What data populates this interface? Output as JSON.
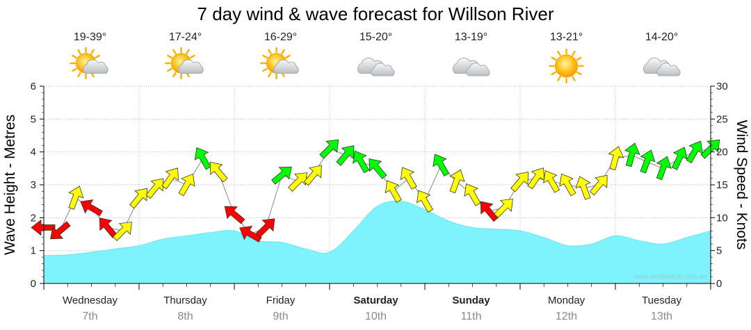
{
  "chart_data": {
    "type": "line",
    "title": "7 day wind & wave forecast for Willson River",
    "y_left": {
      "label": "Wave Height - Metres",
      "range": [
        0,
        6
      ],
      "ticks": [
        0,
        1,
        2,
        3,
        4,
        5,
        6
      ]
    },
    "y_right": {
      "label": "Wind Speed - Knots",
      "range": [
        0,
        30
      ],
      "ticks": [
        0,
        5,
        10,
        15,
        20,
        25,
        30
      ]
    },
    "grid": true,
    "days": [
      {
        "name": "Wednesday",
        "date": "7th",
        "temp": "19-39°",
        "icon": "sun-cloud-icon",
        "bold": false
      },
      {
        "name": "Thursday",
        "date": "8th",
        "temp": "17-24°",
        "icon": "sun-cloud-icon",
        "bold": false
      },
      {
        "name": "Friday",
        "date": "9th",
        "temp": "16-29°",
        "icon": "sun-cloud-icon",
        "bold": false
      },
      {
        "name": "Saturday",
        "date": "10th",
        "temp": "15-20°",
        "icon": "cloud-icon",
        "bold": true
      },
      {
        "name": "Sunday",
        "date": "11th",
        "temp": "13-19°",
        "icon": "cloud-icon",
        "bold": true
      },
      {
        "name": "Monday",
        "date": "12th",
        "temp": "13-21°",
        "icon": "sun-icon",
        "bold": false
      },
      {
        "name": "Tuesday",
        "date": "13th",
        "temp": "14-20°",
        "icon": "cloud-icon",
        "bold": false
      }
    ],
    "wave_series": {
      "name": "Wave Height",
      "color": "#7ff3fb",
      "x_days": [
        0,
        0.25,
        0.5,
        0.75,
        1.0,
        1.25,
        1.5,
        1.75,
        2.0,
        2.25,
        2.5,
        2.75,
        3.0,
        3.25,
        3.5,
        3.75,
        4.0,
        4.25,
        4.5,
        4.75,
        5.0,
        5.25,
        5.5,
        5.75,
        6.0,
        6.25,
        6.5,
        6.75,
        7.0
      ],
      "values": [
        0.85,
        0.87,
        0.95,
        1.05,
        1.15,
        1.35,
        1.45,
        1.55,
        1.6,
        1.3,
        1.25,
        1.05,
        0.95,
        1.6,
        2.35,
        2.5,
        2.25,
        1.9,
        1.7,
        1.65,
        1.6,
        1.4,
        1.15,
        1.2,
        1.45,
        1.3,
        1.2,
        1.4,
        1.6
      ]
    },
    "wind_series": {
      "name": "Wind Speed",
      "color_scale": {
        "low": "#ffff00",
        "mid": "#00ff00",
        "high": "#ff0000"
      },
      "x_days": [
        0,
        0.17,
        0.33,
        0.5,
        0.67,
        0.83,
        1.0,
        1.17,
        1.33,
        1.5,
        1.67,
        1.83,
        2.0,
        2.17,
        2.33,
        2.5,
        2.67,
        2.83,
        3.0,
        3.17,
        3.33,
        3.5,
        3.67,
        3.83,
        4.0,
        4.17,
        4.33,
        4.5,
        4.67,
        4.83,
        5.0,
        5.17,
        5.33,
        5.5,
        5.67,
        5.83,
        6.0,
        6.17,
        6.33,
        6.5,
        6.67,
        6.83,
        7.0
      ],
      "values": [
        8.5,
        8.0,
        13.0,
        11.5,
        8.5,
        8.0,
        13.0,
        14.5,
        16.0,
        15.0,
        19.0,
        17.0,
        10.5,
        7.5,
        8.5,
        16.5,
        15.5,
        16.5,
        20.5,
        19.5,
        18.5,
        17.5,
        14.0,
        16.0,
        12.5,
        18.0,
        15.5,
        13.5,
        11.0,
        11.5,
        15.5,
        16.0,
        15.5,
        15.0,
        14.5,
        15.0,
        19.0,
        19.5,
        18.5,
        17.5,
        19.0,
        20.0,
        20.5
      ],
      "colors": [
        "red",
        "red",
        "yellow",
        "red",
        "red",
        "yellow",
        "yellow",
        "yellow",
        "yellow",
        "yellow",
        "green",
        "yellow",
        "red",
        "red",
        "red",
        "green",
        "yellow",
        "yellow",
        "green",
        "green",
        "green",
        "green",
        "yellow",
        "yellow",
        "yellow",
        "green",
        "yellow",
        "yellow",
        "red",
        "yellow",
        "yellow",
        "yellow",
        "yellow",
        "yellow",
        "yellow",
        "yellow",
        "yellow",
        "green",
        "green",
        "green",
        "green",
        "green",
        "green"
      ],
      "directions_deg": [
        270,
        230,
        20,
        300,
        320,
        45,
        40,
        40,
        35,
        30,
        330,
        320,
        310,
        300,
        45,
        50,
        45,
        40,
        45,
        40,
        330,
        320,
        330,
        330,
        330,
        330,
        20,
        330,
        320,
        45,
        40,
        35,
        330,
        330,
        340,
        40,
        15,
        15,
        20,
        20,
        25,
        30,
        45
      ]
    },
    "watermark": "www.seabreeze.com.au"
  }
}
